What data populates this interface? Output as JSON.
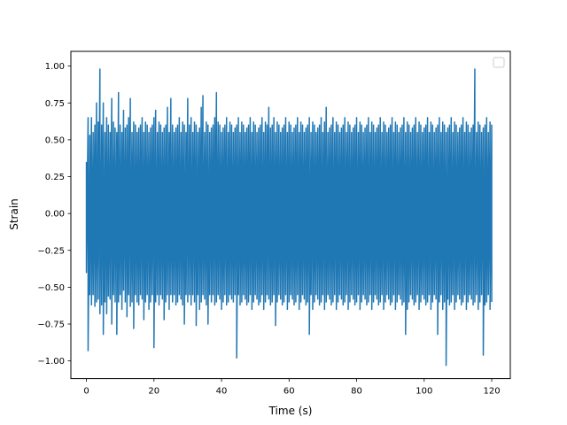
{
  "chart_data": {
    "type": "line",
    "title": "",
    "xlabel": "Time (s)",
    "ylabel": "Strain",
    "xlim": [
      -4.6,
      125.5
    ],
    "ylim": [
      -1.12,
      1.1
    ],
    "xticks": [
      0,
      20,
      40,
      60,
      80,
      100,
      120
    ],
    "xtick_labels": [
      "0",
      "20",
      "40",
      "60",
      "80",
      "100",
      "120"
    ],
    "yticks": [
      -1.0,
      -0.75,
      -0.5,
      -0.25,
      0.0,
      0.25,
      0.5,
      0.75,
      1.0
    ],
    "ytick_labels": [
      "−1.00",
      "−0.75",
      "−0.50",
      "−0.25",
      "0.00",
      "0.25",
      "0.50",
      "0.75",
      "1.00"
    ],
    "grid": false,
    "legend": {
      "placement": "upper right",
      "entries": []
    },
    "series": [
      {
        "color": "#1f77b4",
        "x": [
          0,
          0.5,
          1,
          1.5,
          2,
          2.5,
          3,
          3.5,
          4,
          4.5,
          5,
          5.5,
          6,
          6.5,
          7,
          7.5,
          8,
          8.5,
          9,
          9.5,
          10,
          10.5,
          11,
          11.5,
          12,
          12.5,
          13,
          13.5,
          14,
          14.5,
          15,
          15.5,
          16,
          16.5,
          17,
          17.5,
          18,
          18.5,
          19,
          19.5,
          20,
          20.5,
          21,
          21.5,
          22,
          22.5,
          23,
          23.5,
          24,
          24.5,
          25,
          25.5,
          26,
          26.5,
          27,
          27.5,
          28,
          28.5,
          29,
          29.5,
          30,
          30.5,
          31,
          31.5,
          32,
          32.5,
          33,
          33.5,
          34,
          34.5,
          35,
          35.5,
          36,
          36.5,
          37,
          37.5,
          38,
          38.5,
          39,
          39.5,
          40,
          40.5,
          41,
          41.5,
          42,
          42.5,
          43,
          43.5,
          44,
          44.5,
          45,
          45.5,
          46,
          46.5,
          47,
          47.5,
          48,
          48.5,
          49,
          49.5,
          50,
          50.5,
          51,
          51.5,
          52,
          52.5,
          53,
          53.5,
          54,
          54.5,
          55,
          55.5,
          56,
          56.5,
          57,
          57.5,
          58,
          58.5,
          59,
          59.5,
          60,
          60.5,
          61,
          61.5,
          62,
          62.5,
          63,
          63.5,
          64,
          64.5,
          65,
          65.5,
          66,
          66.5,
          67,
          67.5,
          68,
          68.5,
          69,
          69.5,
          70,
          70.5,
          71,
          71.5,
          72,
          72.5,
          73,
          73.5,
          74,
          74.5,
          75,
          75.5,
          76,
          76.5,
          77,
          77.5,
          78,
          78.5,
          79,
          79.5,
          80,
          80.5,
          81,
          81.5,
          82,
          82.5,
          83,
          83.5,
          84,
          84.5,
          85,
          85.5,
          86,
          86.5,
          87,
          87.5,
          88,
          88.5,
          89,
          89.5,
          90,
          90.5,
          91,
          91.5,
          92,
          92.5,
          93,
          93.5,
          94,
          94.5,
          95,
          95.5,
          96,
          96.5,
          97,
          97.5,
          98,
          98.5,
          99,
          99.5,
          100,
          100.5,
          101,
          101.5,
          102,
          102.5,
          103,
          103.5,
          104,
          104.5,
          105,
          105.5,
          106,
          106.5,
          107,
          107.5,
          108,
          108.5,
          109,
          109.5,
          110,
          110.5,
          111,
          111.5,
          112,
          112.5,
          113,
          113.5,
          114,
          114.5,
          115,
          115.5,
          116,
          116.5,
          117,
          117.5,
          118,
          118.5,
          119,
          119.5,
          120
        ],
        "y_min": [
          -0.4,
          -0.93,
          -0.55,
          -0.62,
          -0.55,
          -0.63,
          -0.6,
          -0.58,
          -0.68,
          -0.62,
          -0.82,
          -0.6,
          -0.68,
          -0.56,
          -0.58,
          -0.75,
          -0.55,
          -0.6,
          -0.82,
          -0.6,
          -0.55,
          -0.65,
          -0.52,
          -0.6,
          -0.7,
          -0.55,
          -0.63,
          -0.6,
          -0.78,
          -0.55,
          -0.6,
          -0.62,
          -0.55,
          -0.58,
          -0.72,
          -0.6,
          -0.55,
          -0.65,
          -0.6,
          -0.55,
          -0.91,
          -0.6,
          -0.55,
          -0.62,
          -0.55,
          -0.58,
          -0.72,
          -0.6,
          -0.55,
          -0.65,
          -0.55,
          -0.6,
          -0.55,
          -0.62,
          -0.6,
          -0.55,
          -0.58,
          -0.62,
          -0.75,
          -0.55,
          -0.6,
          -0.55,
          -0.62,
          -0.55,
          -0.6,
          -0.76,
          -0.55,
          -0.65,
          -0.6,
          -0.55,
          -0.58,
          -0.62,
          -0.75,
          -0.55,
          -0.6,
          -0.55,
          -0.62,
          -0.6,
          -0.55,
          -0.58,
          -0.65,
          -0.6,
          -0.55,
          -0.62,
          -0.6,
          -0.55,
          -0.58,
          -0.6,
          -0.55,
          -0.98,
          -0.55,
          -0.62,
          -0.6,
          -0.55,
          -0.58,
          -0.62,
          -0.6,
          -0.55,
          -0.65,
          -0.6,
          -0.55,
          -0.58,
          -0.62,
          -0.6,
          -0.55,
          -0.65,
          -0.6,
          -0.55,
          -0.58,
          -0.62,
          -0.6,
          -0.55,
          -0.76,
          -0.6,
          -0.55,
          -0.58,
          -0.62,
          -0.6,
          -0.55,
          -0.65,
          -0.6,
          -0.55,
          -0.58,
          -0.62,
          -0.6,
          -0.55,
          -0.65,
          -0.6,
          -0.55,
          -0.58,
          -0.62,
          -0.6,
          -0.82,
          -0.55,
          -0.65,
          -0.6,
          -0.55,
          -0.58,
          -0.62,
          -0.6,
          -0.55,
          -0.65,
          -0.6,
          -0.55,
          -0.58,
          -0.62,
          -0.6,
          -0.55,
          -0.65,
          -0.6,
          -0.55,
          -0.58,
          -0.62,
          -0.6,
          -0.55,
          -0.65,
          -0.6,
          -0.55,
          -0.58,
          -0.62,
          -0.6,
          -0.55,
          -0.65,
          -0.6,
          -0.55,
          -0.58,
          -0.62,
          -0.6,
          -0.55,
          -0.65,
          -0.6,
          -0.55,
          -0.58,
          -0.62,
          -0.6,
          -0.55,
          -0.65,
          -0.6,
          -0.55,
          -0.58,
          -0.62,
          -0.6,
          -0.55,
          -0.65,
          -0.6,
          -0.55,
          -0.58,
          -0.62,
          -0.6,
          -0.82,
          -0.65,
          -0.6,
          -0.55,
          -0.58,
          -0.62,
          -0.6,
          -0.55,
          -0.65,
          -0.6,
          -0.55,
          -0.58,
          -0.62,
          -0.6,
          -0.55,
          -0.65,
          -0.6,
          -0.55,
          -0.58,
          -0.82,
          -0.6,
          -0.55,
          -0.65,
          -0.6,
          -1.03,
          -0.58,
          -0.62,
          -0.6,
          -0.55,
          -0.65,
          -0.6,
          -0.55,
          -0.58,
          -0.62,
          -0.6,
          -0.55,
          -0.65,
          -0.6,
          -0.55,
          -0.58,
          -0.62,
          -0.6,
          -0.55,
          -0.65,
          -0.6,
          -0.55,
          -0.96,
          -0.62,
          -0.6,
          -0.55,
          -0.65,
          -0.6,
          -0.55,
          -0.58,
          -0.62,
          -0.28
        ],
        "y_max": [
          0.35,
          0.65,
          0.53,
          0.65,
          0.55,
          0.6,
          0.75,
          0.62,
          0.98,
          0.6,
          0.75,
          0.55,
          0.65,
          0.6,
          0.55,
          0.78,
          0.62,
          0.58,
          0.55,
          0.82,
          0.6,
          0.55,
          0.7,
          0.58,
          0.6,
          0.65,
          0.78,
          0.55,
          0.62,
          0.6,
          0.55,
          0.58,
          0.6,
          0.65,
          0.55,
          0.62,
          0.6,
          0.55,
          0.58,
          0.6,
          0.65,
          0.7,
          0.55,
          0.62,
          0.6,
          0.55,
          0.58,
          0.6,
          0.72,
          0.55,
          0.78,
          0.6,
          0.55,
          0.58,
          0.6,
          0.65,
          0.55,
          0.62,
          0.6,
          0.55,
          0.78,
          0.6,
          0.65,
          0.55,
          0.62,
          0.6,
          0.55,
          0.58,
          0.72,
          0.8,
          0.55,
          0.62,
          0.6,
          0.55,
          0.58,
          0.6,
          0.65,
          0.82,
          0.62,
          0.6,
          0.55,
          0.58,
          0.6,
          0.65,
          0.55,
          0.62,
          0.6,
          0.55,
          0.58,
          0.6,
          0.65,
          0.55,
          0.62,
          0.6,
          0.55,
          0.58,
          0.6,
          0.65,
          0.55,
          0.62,
          0.6,
          0.55,
          0.58,
          0.6,
          0.65,
          0.55,
          0.62,
          0.6,
          0.72,
          0.58,
          0.6,
          0.65,
          0.55,
          0.62,
          0.6,
          0.55,
          0.58,
          0.6,
          0.65,
          0.55,
          0.62,
          0.6,
          0.55,
          0.58,
          0.6,
          0.65,
          0.55,
          0.62,
          0.6,
          0.55,
          0.58,
          0.6,
          0.65,
          0.55,
          0.62,
          0.6,
          0.55,
          0.58,
          0.6,
          0.65,
          0.55,
          0.62,
          0.72,
          0.55,
          0.58,
          0.6,
          0.65,
          0.55,
          0.62,
          0.6,
          0.55,
          0.58,
          0.6,
          0.65,
          0.55,
          0.62,
          0.6,
          0.55,
          0.58,
          0.6,
          0.65,
          0.55,
          0.62,
          0.6,
          0.55,
          0.58,
          0.6,
          0.65,
          0.55,
          0.62,
          0.6,
          0.55,
          0.58,
          0.6,
          0.65,
          0.55,
          0.62,
          0.6,
          0.55,
          0.58,
          0.6,
          0.65,
          0.55,
          0.62,
          0.6,
          0.55,
          0.58,
          0.6,
          0.65,
          0.55,
          0.62,
          0.6,
          0.55,
          0.58,
          0.6,
          0.65,
          0.55,
          0.62,
          0.6,
          0.55,
          0.58,
          0.6,
          0.65,
          0.55,
          0.62,
          0.6,
          0.55,
          0.58,
          0.6,
          0.65,
          0.55,
          0.62,
          0.6,
          0.55,
          0.58,
          0.6,
          0.65,
          0.55,
          0.62,
          0.6,
          0.55,
          0.58,
          0.6,
          0.65,
          0.55,
          0.62,
          0.6,
          0.55,
          0.58,
          0.6,
          0.98,
          0.55,
          0.62,
          0.6,
          0.55,
          0.58,
          0.6,
          0.65,
          0.55,
          0.62,
          0.6,
          0.75,
          0.58,
          0.6,
          0.85,
          0.55,
          0.62,
          0.6,
          0.55,
          0.28
        ]
      }
    ]
  }
}
